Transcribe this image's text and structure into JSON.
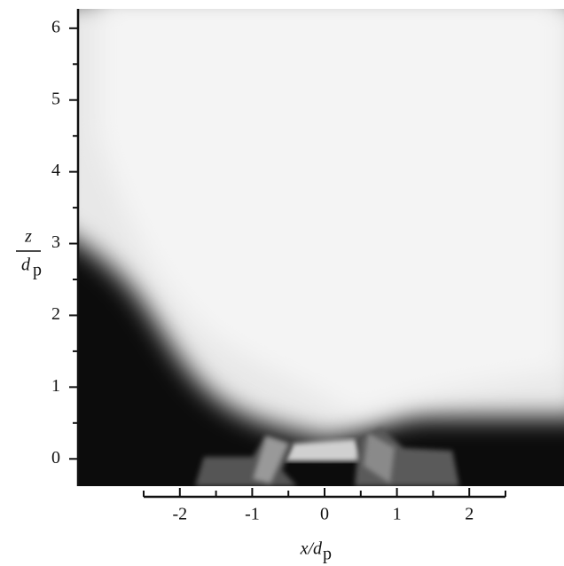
{
  "chart_data": {
    "type": "image",
    "xlabel": {
      "text": "x/d",
      "subscript": "p"
    },
    "ylabel": {
      "numerator": "z",
      "denominator": "d",
      "subscript": "p"
    },
    "xlim": [
      -2.5,
      2.5
    ],
    "xticks": [
      -2,
      -1,
      0,
      1,
      2
    ],
    "xminor_ticks": [
      -2.5,
      -1.5,
      -0.5,
      0.5,
      1.5,
      2.5
    ],
    "ylim": [
      -0.38,
      6.27
    ],
    "yticks": [
      0,
      1,
      2,
      3,
      4,
      5,
      6
    ],
    "yminor_ticks": [
      -0.5,
      0.5,
      1.5,
      2.5,
      3.5,
      4.5,
      5.5
    ]
  }
}
